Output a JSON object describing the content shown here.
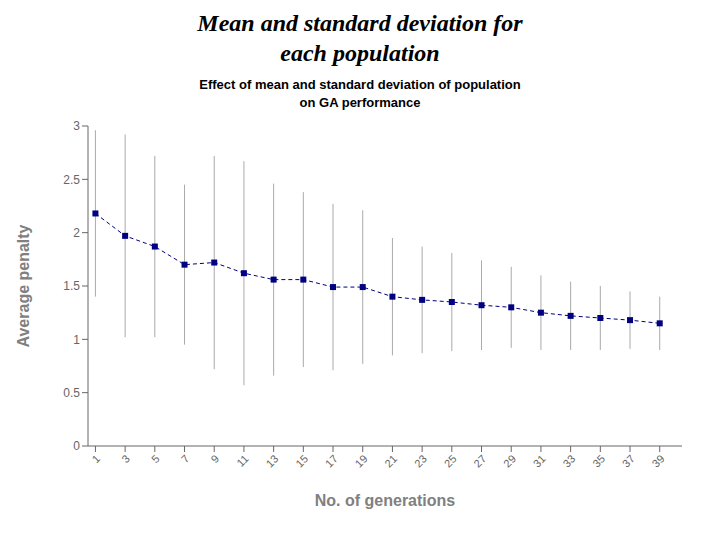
{
  "chart_data": {
    "type": "line",
    "title": "Mean and standard deviation for\neach population",
    "subtitle": "Effect of mean and standard deviation of population\non GA performance",
    "x_label": "No. of generations",
    "y_label": "Average penalty",
    "x": [
      1,
      3,
      5,
      7,
      9,
      11,
      13,
      15,
      17,
      19,
      21,
      23,
      25,
      27,
      29,
      31,
      33,
      35,
      37,
      39
    ],
    "series": [
      {
        "values": [
          2.18,
          1.97,
          1.87,
          1.7,
          1.72,
          1.62,
          1.56,
          1.56,
          1.49,
          1.49,
          1.4,
          1.37,
          1.35,
          1.32,
          1.3,
          1.25,
          1.22,
          1.2,
          1.18,
          1.15
        ],
        "errors": [
          0.78,
          0.95,
          0.85,
          0.75,
          1.0,
          1.05,
          0.9,
          0.82,
          0.78,
          0.72,
          0.55,
          0.5,
          0.46,
          0.42,
          0.38,
          0.35,
          0.32,
          0.3,
          0.27,
          0.25
        ],
        "color": "#000080",
        "marker": "square",
        "line_style": "dashed"
      }
    ],
    "xlim": [
      0.5,
      40.5
    ],
    "xticks": [
      1,
      3,
      5,
      7,
      9,
      11,
      13,
      15,
      17,
      19,
      21,
      23,
      25,
      27,
      29,
      31,
      33,
      35,
      37,
      39
    ],
    "ylim": [
      0,
      3
    ],
    "yticks": [
      0,
      0.5,
      1,
      1.5,
      2,
      2.5,
      3
    ]
  }
}
